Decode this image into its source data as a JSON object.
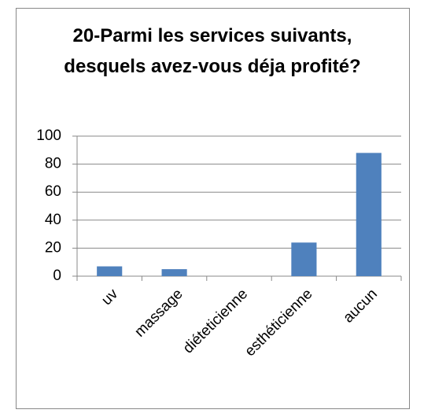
{
  "chart_data": {
    "type": "bar",
    "title": "20-Parmi les services suivants, desquels avez-vous déja profité?",
    "categories": [
      "uv",
      "massage",
      "diéteticienne",
      "esthéticienne",
      "aucun"
    ],
    "values": [
      7,
      5,
      0,
      24,
      88
    ],
    "color": "#4f81bd",
    "ylim": [
      0,
      100
    ],
    "yticks": [
      0,
      20,
      40,
      60,
      80,
      100
    ],
    "grid": true
  }
}
